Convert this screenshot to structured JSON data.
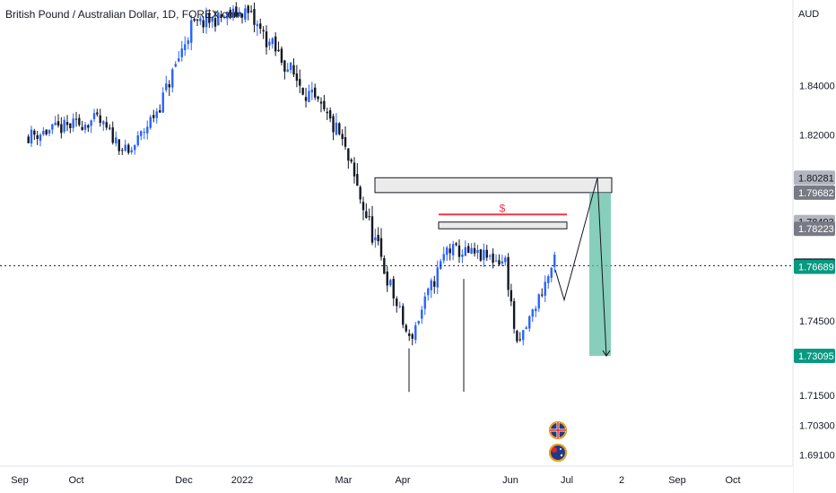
{
  "chart_data": {
    "type": "candlestick",
    "title": "British Pound / Australian Dollar, 1D, FOREX.com",
    "currency_label": "AUD",
    "ylim": [
      1.6865,
      1.8745
    ],
    "y_ticks": [
      1.84,
      1.82,
      1.745,
      1.715,
      1.703,
      1.691
    ],
    "y_tick_labels": [
      "1.84000",
      "1.82000",
      "1.74500",
      "1.71500",
      "1.70300",
      "1.69100"
    ],
    "x_labels": [
      "Sep",
      "Oct",
      "Dec",
      "2022",
      "Mar",
      "Apr",
      "Jun",
      "Jul",
      "2",
      "Sep",
      "Oct"
    ],
    "price_tags": [
      {
        "label": "1.80281",
        "value": 1.80281,
        "style": "gray"
      },
      {
        "label": "1.79682",
        "value": 1.79682,
        "style": "darkgray"
      },
      {
        "label": "1.78493",
        "value": 1.78493,
        "style": "gray"
      },
      {
        "label": "1.78223",
        "value": 1.78223,
        "style": "darkgray"
      },
      {
        "label": "1.76736",
        "value": 1.76736,
        "style": "black"
      },
      {
        "label": "1.76689",
        "value": 1.76689,
        "style": "green"
      },
      {
        "label": "1.73095",
        "value": 1.73095,
        "style": "green"
      }
    ],
    "current_price": 1.76736,
    "annotation_text": "$",
    "zones": [
      {
        "name": "upper-zone",
        "from": 1.79682,
        "to": 1.80281
      },
      {
        "name": "lower-zone",
        "from": 1.78223,
        "to": 1.78493
      }
    ],
    "liquidity_line": 1.788,
    "target_box": {
      "from": 1.73095,
      "to": 1.79682
    },
    "projection_path": [
      1.7657,
      1.7535,
      1.80281,
      1.73095
    ],
    "segments": [
      {
        "start": 1.8195,
        "end": 1.8262,
        "vol": 0.006,
        "drift": 0
      },
      {
        "start": 1.8262,
        "end": 1.812,
        "vol": 0.0055,
        "drift": 0
      },
      {
        "start": 1.812,
        "end": 1.832,
        "vol": 0.006,
        "drift": 0
      },
      {
        "start": 1.832,
        "end": 1.864,
        "vol": 0.007,
        "drift": 0
      },
      {
        "start": 1.864,
        "end": 1.87,
        "vol": 0.006,
        "drift": 0
      },
      {
        "start": 1.87,
        "end": 1.82,
        "vol": 0.008,
        "drift": 0
      },
      {
        "start": 1.82,
        "end": 1.766,
        "vol": 0.009,
        "drift": 0
      },
      {
        "start": 1.766,
        "end": 1.737,
        "vol": 0.007,
        "drift": 0
      },
      {
        "start": 1.737,
        "end": 1.774,
        "vol": 0.007,
        "drift": 0
      },
      {
        "start": 1.774,
        "end": 1.769,
        "vol": 0.006,
        "drift": 0
      },
      {
        "start": 1.769,
        "end": 1.734,
        "vol": 0.006,
        "drift": 0
      },
      {
        "start": 1.734,
        "end": 1.769,
        "vol": 0.006,
        "drift": 0
      }
    ]
  }
}
